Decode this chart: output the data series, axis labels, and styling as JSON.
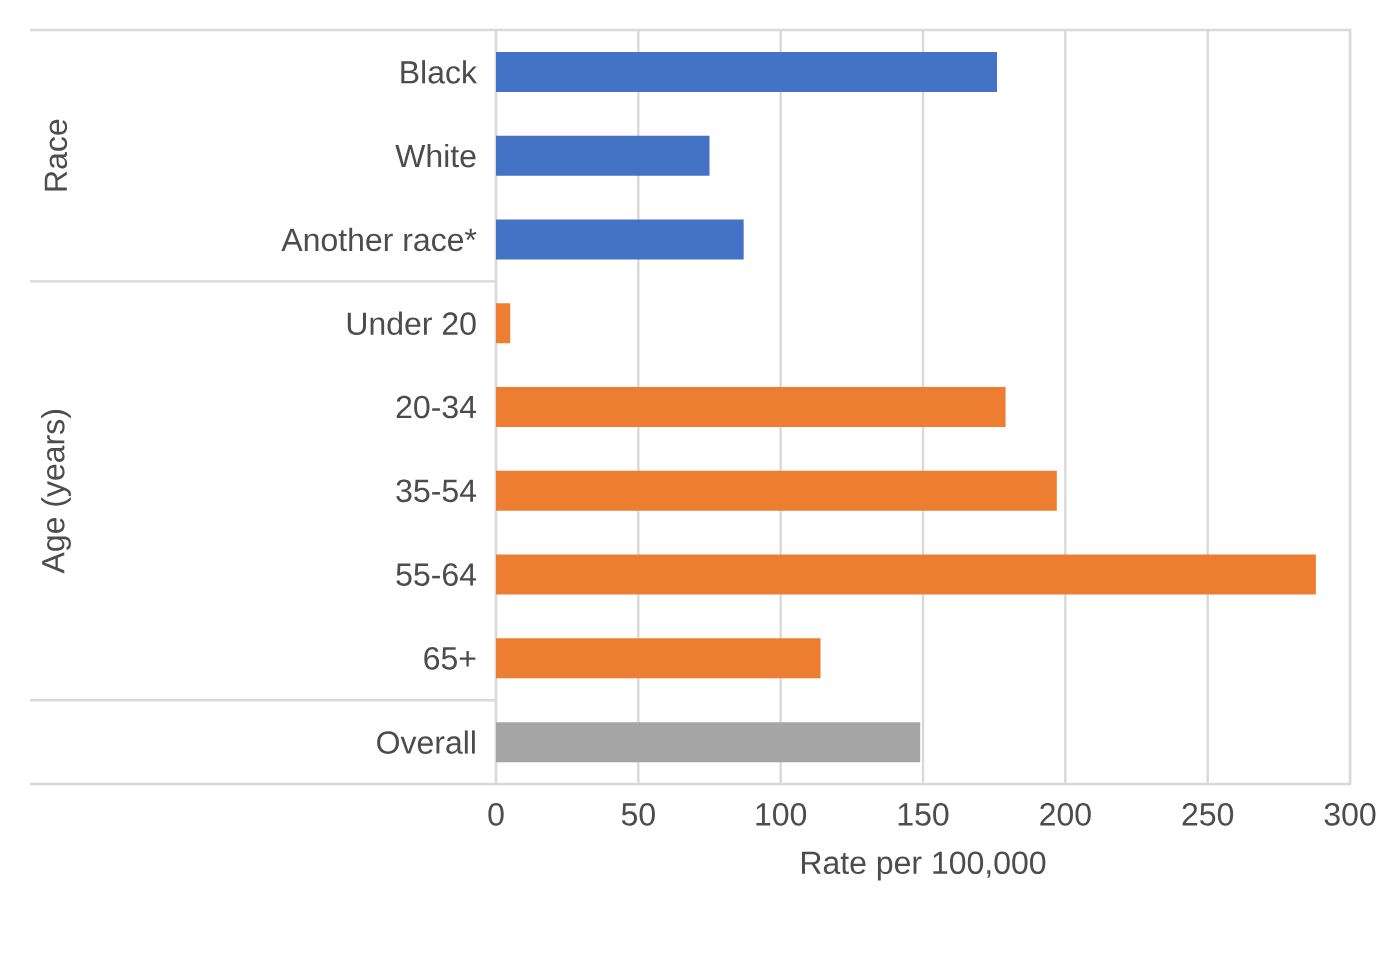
{
  "chart_data": {
    "type": "bar",
    "orientation": "horizontal",
    "xlabel": "Rate per 100,000",
    "categories": [
      "Black",
      "White",
      "Another race*",
      "Under 20",
      "20-34",
      "35-54",
      "55-64",
      "65+",
      "Overall"
    ],
    "values": [
      176,
      75,
      87,
      5,
      179,
      197,
      288,
      114,
      149
    ],
    "colors": [
      "#4472c4",
      "#4472c4",
      "#4472c4",
      "#ed7d31",
      "#ed7d31",
      "#ed7d31",
      "#ed7d31",
      "#ed7d31",
      "#a5a5a5"
    ],
    "annotations": [
      "Race",
      "Age (years)"
    ],
    "xlim": [
      0,
      300
    ],
    "xticks": [
      0,
      50,
      100,
      150,
      200,
      250,
      300
    ],
    "grid": "x"
  }
}
